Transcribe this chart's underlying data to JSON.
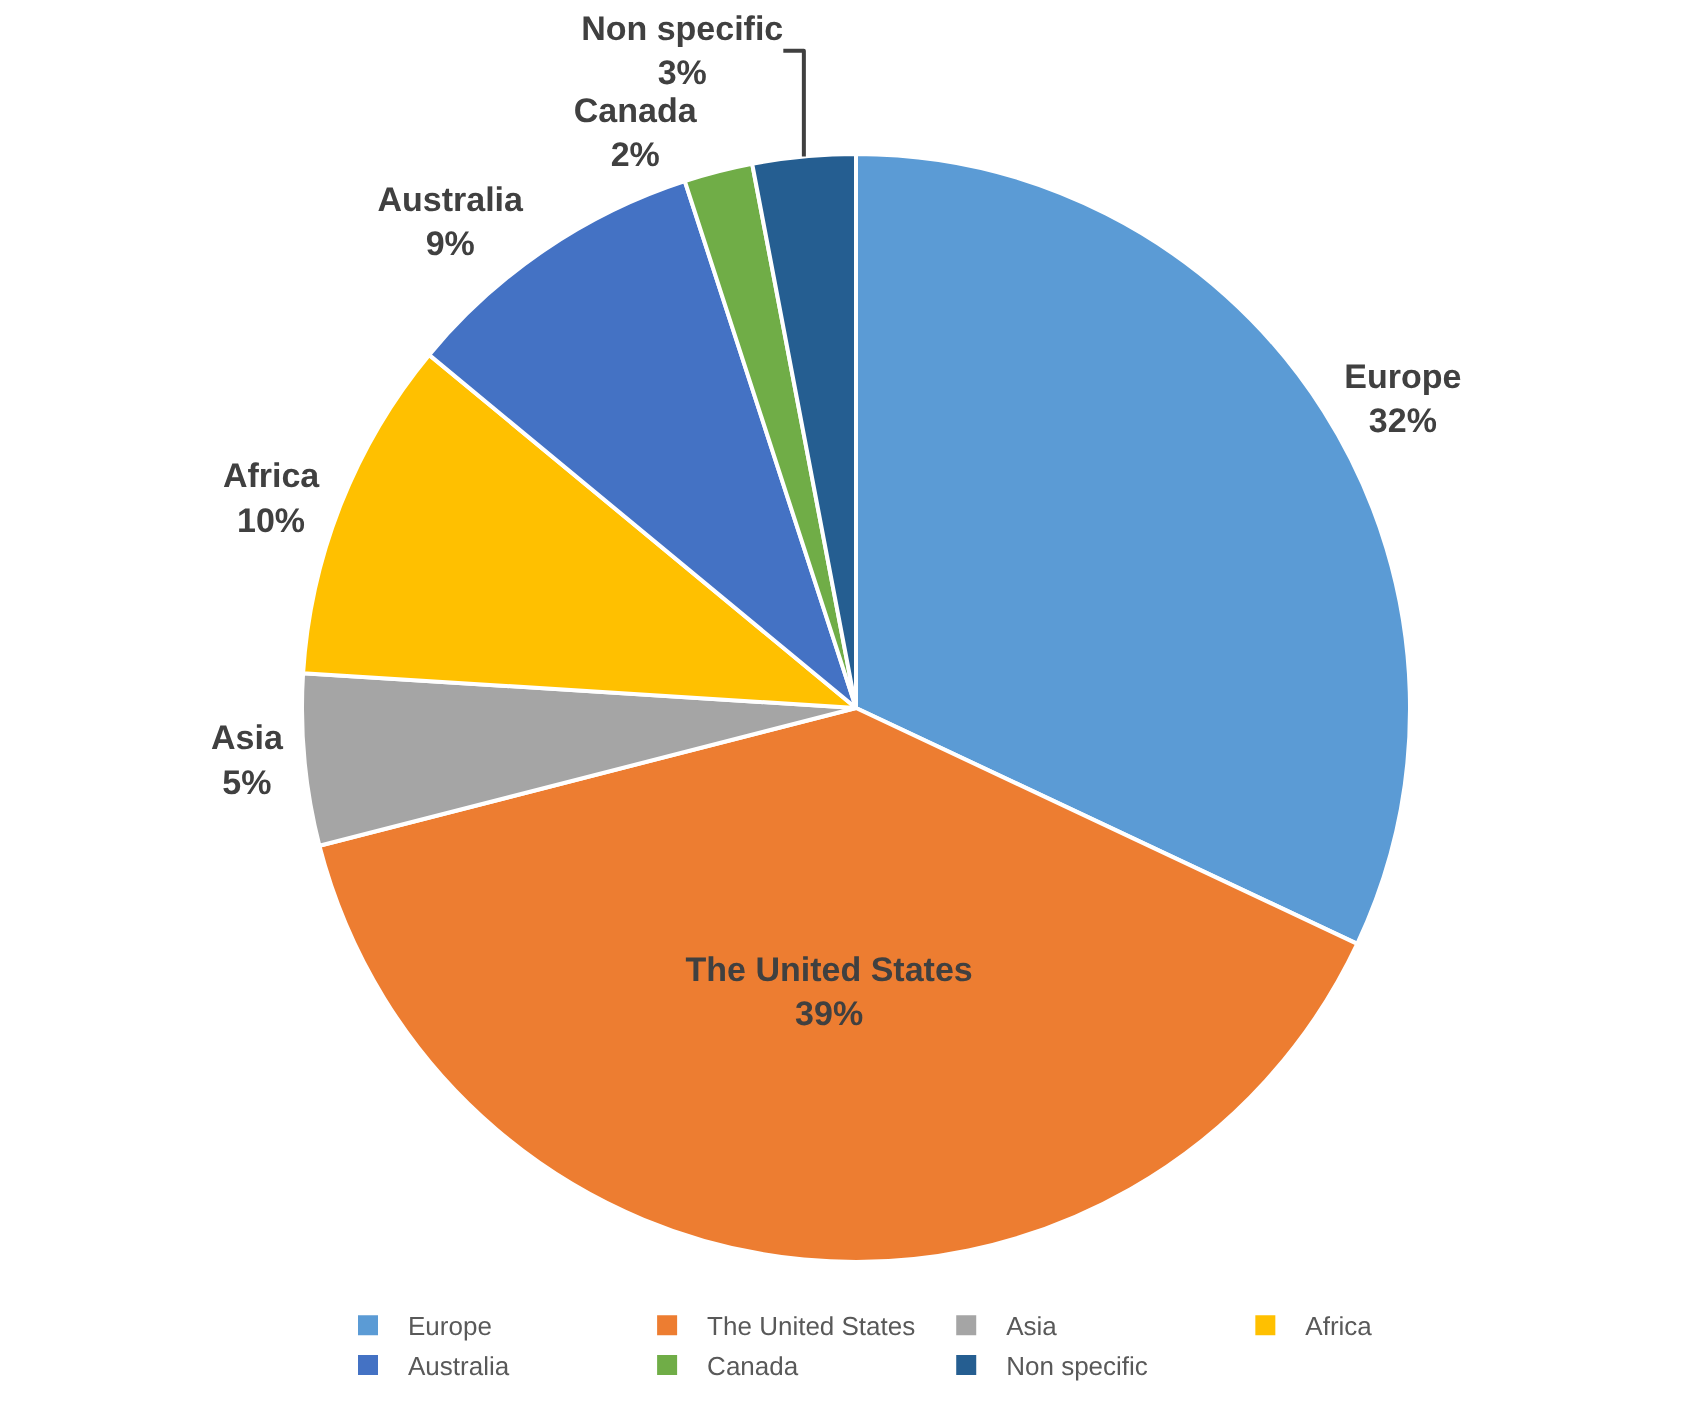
{
  "chart_data": {
    "type": "pie",
    "categories": [
      "Europe",
      "The United States",
      "Asia",
      "Africa",
      "Australia",
      "Canada",
      "Non specific"
    ],
    "values": [
      32,
      39,
      5,
      10,
      9,
      2,
      3
    ],
    "value_labels": [
      "32%",
      "39%",
      "5%",
      "10%",
      "9%",
      "2%",
      "3%"
    ],
    "colors": [
      "#5b9bd5",
      "#ed7d31",
      "#a5a5a5",
      "#ffc000",
      "#4472c4",
      "#70ad47",
      "#255e91"
    ],
    "legend": "bottom"
  }
}
